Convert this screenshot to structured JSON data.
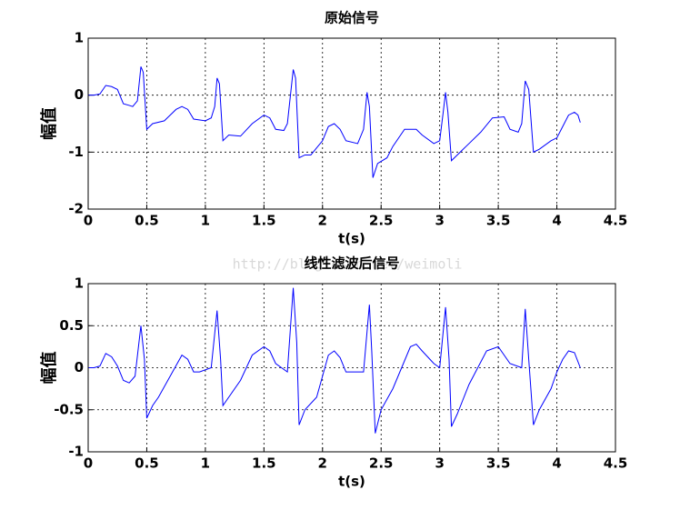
{
  "chart_data": [
    {
      "type": "line",
      "title": "原始信号",
      "xlabel": "t(s)",
      "ylabel": "幅值",
      "xlim": [
        0,
        4.5
      ],
      "xticks": [
        0,
        0.5,
        1,
        1.5,
        2,
        2.5,
        3,
        3.5,
        4,
        4.5
      ],
      "ylim": [
        -2,
        1
      ],
      "yticks": [
        -2,
        -1,
        0,
        1
      ],
      "grid": true,
      "x": [
        0,
        0.05,
        0.1,
        0.15,
        0.2,
        0.25,
        0.3,
        0.35,
        0.38,
        0.42,
        0.45,
        0.47,
        0.5,
        0.55,
        0.65,
        0.75,
        0.8,
        0.85,
        0.9,
        1.0,
        1.05,
        1.08,
        1.1,
        1.12,
        1.15,
        1.2,
        1.3,
        1.4,
        1.5,
        1.55,
        1.6,
        1.67,
        1.7,
        1.75,
        1.77,
        1.8,
        1.85,
        1.9,
        2.0,
        2.05,
        2.1,
        2.15,
        2.2,
        2.3,
        2.35,
        2.38,
        2.4,
        2.43,
        2.47,
        2.55,
        2.6,
        2.7,
        2.8,
        2.85,
        2.95,
        3.0,
        3.03,
        3.05,
        3.07,
        3.1,
        3.15,
        3.25,
        3.35,
        3.45,
        3.55,
        3.6,
        3.67,
        3.7,
        3.73,
        3.76,
        3.8,
        3.85,
        3.95,
        4.0,
        4.05,
        4.1,
        4.15,
        4.18,
        4.2
      ],
      "series": [
        {
          "color": "#0000ff",
          "values": [
            0,
            0,
            0.02,
            0.17,
            0.15,
            0.1,
            -0.15,
            -0.18,
            -0.2,
            -0.1,
            0.5,
            0.4,
            -0.6,
            -0.5,
            -0.45,
            -0.25,
            -0.2,
            -0.25,
            -0.42,
            -0.45,
            -0.4,
            -0.2,
            0.3,
            0.2,
            -0.8,
            -0.7,
            -0.72,
            -0.5,
            -0.35,
            -0.4,
            -0.6,
            -0.62,
            -0.5,
            0.45,
            0.3,
            -1.1,
            -1.05,
            -1.05,
            -0.8,
            -0.55,
            -0.5,
            -0.6,
            -0.8,
            -0.85,
            -0.6,
            0.05,
            -0.2,
            -1.45,
            -1.2,
            -1.1,
            -0.9,
            -0.6,
            -0.6,
            -0.7,
            -0.85,
            -0.8,
            -0.3,
            0.05,
            -0.3,
            -1.15,
            -1.05,
            -0.85,
            -0.65,
            -0.4,
            -0.38,
            -0.6,
            -0.65,
            -0.5,
            0.25,
            0.1,
            -1.0,
            -0.95,
            -0.8,
            -0.75,
            -0.55,
            -0.35,
            -0.3,
            -0.35,
            -0.48
          ]
        }
      ]
    },
    {
      "type": "line",
      "title": "线性滤波后信号",
      "xlabel": "t(s)",
      "ylabel": "幅值",
      "xlim": [
        0,
        4.5
      ],
      "xticks": [
        0,
        0.5,
        1,
        1.5,
        2,
        2.5,
        3,
        3.5,
        4,
        4.5
      ],
      "ylim": [
        -1,
        1
      ],
      "yticks": [
        -1,
        -0.5,
        0,
        0.5,
        1
      ],
      "grid": true,
      "x": [
        0,
        0.05,
        0.1,
        0.15,
        0.2,
        0.25,
        0.3,
        0.35,
        0.4,
        0.45,
        0.48,
        0.5,
        0.55,
        0.6,
        0.7,
        0.8,
        0.85,
        0.9,
        0.95,
        1.05,
        1.1,
        1.13,
        1.15,
        1.2,
        1.3,
        1.4,
        1.5,
        1.55,
        1.6,
        1.7,
        1.75,
        1.78,
        1.8,
        1.85,
        1.95,
        2.05,
        2.1,
        2.15,
        2.2,
        2.35,
        2.4,
        2.42,
        2.45,
        2.5,
        2.6,
        2.75,
        2.8,
        2.85,
        2.95,
        3.0,
        3.05,
        3.08,
        3.1,
        3.15,
        3.25,
        3.4,
        3.5,
        3.6,
        3.7,
        3.73,
        3.76,
        3.8,
        3.85,
        3.95,
        4.0,
        4.05,
        4.1,
        4.15,
        4.2
      ],
      "series": [
        {
          "color": "#0000ff",
          "values": [
            0,
            0,
            0.02,
            0.17,
            0.13,
            0.02,
            -0.15,
            -0.18,
            -0.1,
            0.5,
            0.1,
            -0.6,
            -0.45,
            -0.35,
            -0.1,
            0.15,
            0.1,
            -0.05,
            -0.05,
            0,
            0.68,
            0.1,
            -0.45,
            -0.35,
            -0.15,
            0.15,
            0.25,
            0.2,
            0.05,
            -0.05,
            0.95,
            0.3,
            -0.68,
            -0.5,
            -0.35,
            0.15,
            0.2,
            0.12,
            -0.05,
            -0.05,
            0.75,
            0.2,
            -0.78,
            -0.5,
            -0.25,
            0.25,
            0.28,
            0.2,
            0.05,
            0,
            0.72,
            0.1,
            -0.7,
            -0.55,
            -0.2,
            0.2,
            0.25,
            0.05,
            0,
            0.7,
            0.1,
            -0.68,
            -0.5,
            -0.25,
            -0.05,
            0.1,
            0.2,
            0.18,
            0
          ]
        }
      ]
    }
  ],
  "watermark": "http://blog.csdn.net/weimoli"
}
